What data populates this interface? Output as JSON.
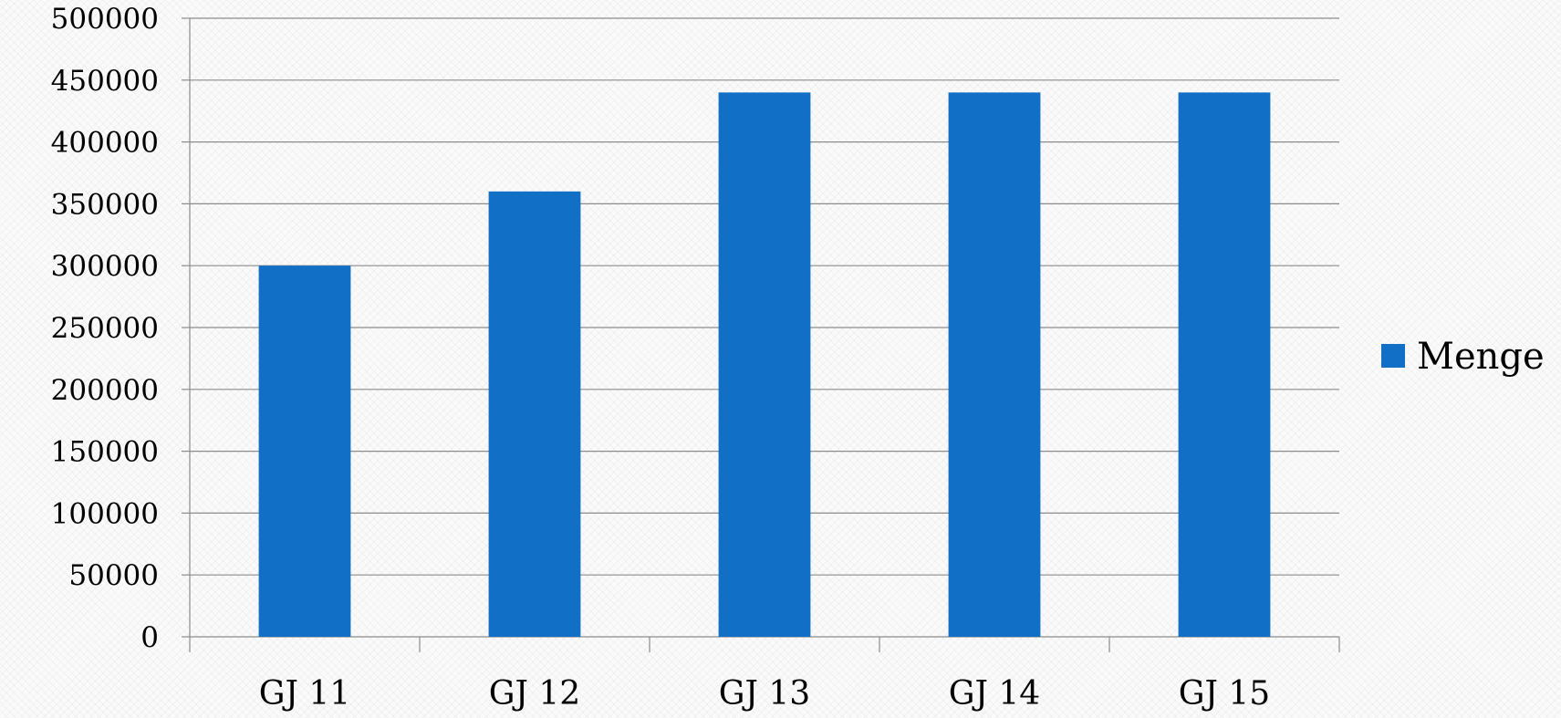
{
  "chart_data": {
    "type": "bar",
    "title": "",
    "xlabel": "",
    "ylabel": "",
    "categories": [
      "GJ 11",
      "GJ 12",
      "GJ 13",
      "GJ 14",
      "GJ 15"
    ],
    "series": [
      {
        "name": "Menge",
        "values": [
          300000,
          360000,
          440000,
          440000,
          440000
        ],
        "color": "#1170C6"
      }
    ],
    "ylim": [
      0,
      500000
    ],
    "yticks": [
      "0",
      "50000",
      "100000",
      "150000",
      "200000",
      "250000",
      "300000",
      "350000",
      "400000",
      "450000",
      "500000"
    ],
    "grid": true,
    "legend_position": "right"
  }
}
